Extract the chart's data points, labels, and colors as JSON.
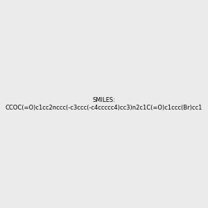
{
  "smiles": "CCOC(=O)c1cc2nccc(-c3ccc(-c4ccccc4)cc3)n2c1C(=O)c1ccc(Br)cc1",
  "background_color": "#ebebeb",
  "bond_color": "#000000",
  "nitrogen_color": "#0000ff",
  "oxygen_color": "#ff0000",
  "bromine_color": "#c87800",
  "title": "",
  "figsize": [
    3.0,
    3.0
  ],
  "dpi": 100
}
